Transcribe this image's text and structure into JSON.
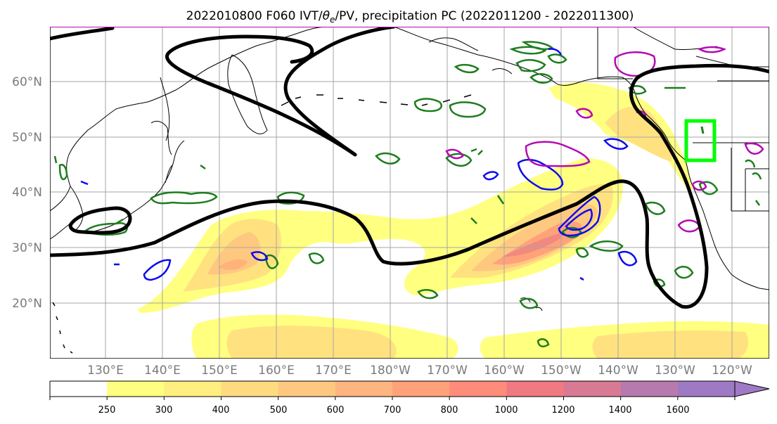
{
  "title_parts": {
    "prefix": "2022010800 F060 IVT/",
    "theta": "θ",
    "sub": "e",
    "suffix": "/PV, precipitation PC (2022011200 - 2022011300)"
  },
  "map": {
    "lat_labels": [
      "60°N",
      "50°N",
      "40°N",
      "30°N",
      "20°N"
    ],
    "lon_labels": [
      "130°E",
      "140°E",
      "150°E",
      "160°E",
      "170°E",
      "180°W",
      "170°W",
      "160°W",
      "150°W",
      "140°W",
      "130°W",
      "120°W"
    ]
  },
  "colorbar": {
    "ticks": [
      "250",
      "300",
      "400",
      "500",
      "600",
      "700",
      "800",
      "1000",
      "1200",
      "1400",
      "1600"
    ],
    "colors": [
      "#ffffff",
      "#ffff80",
      "#ffee80",
      "#ffdb80",
      "#ffc880",
      "#ffb580",
      "#ffa27a",
      "#ff8c7a",
      "#f07a82",
      "#d97a94",
      "#b87aae",
      "#9f7ac4",
      "#9f7ac4"
    ]
  },
  "colors": {
    "jet": "#000000",
    "green_contour": "#1e7d1e",
    "blue_contour": "#0b0bee",
    "magenta_contour": "#b40ab4",
    "highlight_box": "#00ff00",
    "ivt_low": "#ffff80",
    "ivt_mid": "#ffc880",
    "ivt_high": "#f08080"
  }
}
